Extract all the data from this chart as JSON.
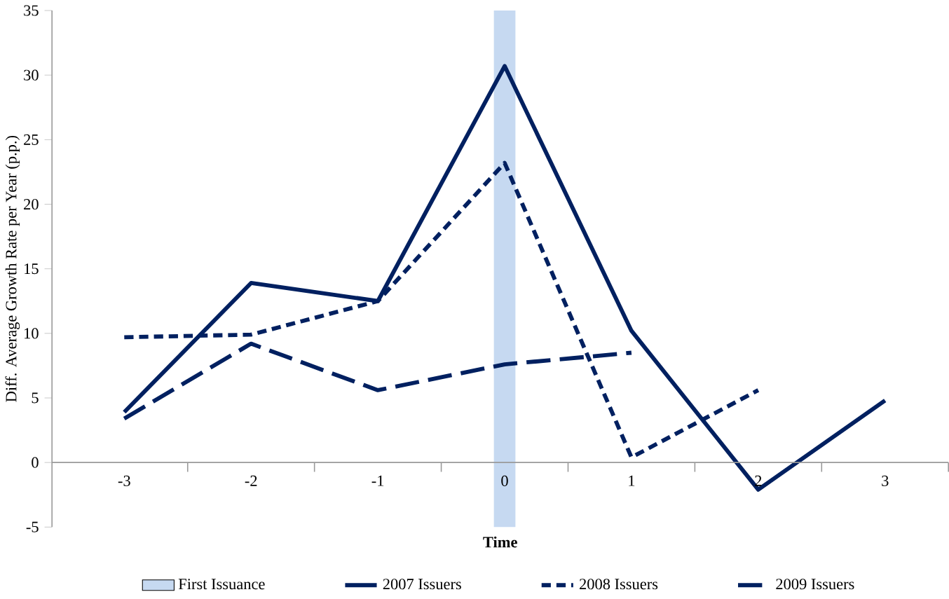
{
  "chart_data": {
    "type": "line",
    "xlabel": "Time",
    "ylabel": "Diff. Average Growth Rate per Year (p.p.)",
    "categories": [
      "-3",
      "-2",
      "-1",
      "0",
      "1",
      "2",
      "3"
    ],
    "series": [
      {
        "name": "First Issuance",
        "type": "bar",
        "color": "#c6d9f1",
        "values": [
          null,
          null,
          null,
          40,
          null,
          null,
          null
        ],
        "base": [
          null,
          null,
          null,
          -5,
          null,
          null,
          null
        ]
      },
      {
        "name": "2007 Issuers",
        "color": "#002060",
        "line_style": "solid",
        "values": [
          3.9,
          13.9,
          12.5,
          30.7,
          10.2,
          -2.1,
          4.8
        ]
      },
      {
        "name": "2008 Issuers",
        "color": "#002060",
        "line_style": "dotted",
        "values": [
          9.7,
          9.9,
          12.5,
          23.2,
          0.4,
          5.6,
          null
        ]
      },
      {
        "name": "2009 Issuers",
        "color": "#002060",
        "line_style": "dashed",
        "values": [
          3.4,
          9.2,
          5.6,
          7.6,
          8.5,
          null,
          null
        ]
      }
    ],
    "ylim": [
      -5,
      35
    ],
    "yticks": [
      -5,
      0,
      5,
      10,
      15,
      20,
      25,
      30,
      35
    ],
    "grid": false,
    "legend": "bottom",
    "marker": "none"
  }
}
